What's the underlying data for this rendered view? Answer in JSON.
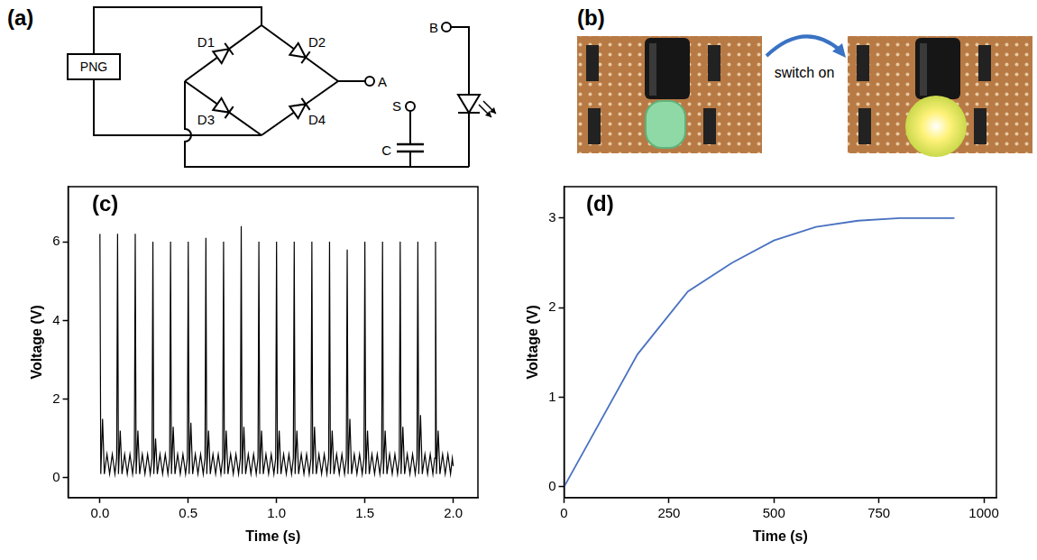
{
  "panel_a": {
    "label": "(a)",
    "circuit": {
      "source": "PNG",
      "diodes": [
        "D1",
        "D2",
        "D3",
        "D4"
      ],
      "terminal_a": "A",
      "terminal_b": "B",
      "switch": "S",
      "capacitor": "C"
    }
  },
  "panel_b": {
    "label": "(b)",
    "annotation": "switch on"
  },
  "chart_data": [
    {
      "panel": "(c)",
      "type": "line",
      "x_label": "Time (s)",
      "y_label": "Voltage (V)",
      "color": "#000000",
      "marker": "none",
      "grid": false,
      "xlim": [
        -0.18,
        2.14
      ],
      "xticks": [
        {
          "value": 0,
          "label": "0.0"
        },
        {
          "value": 0.5,
          "label": "0.5"
        },
        {
          "value": 1,
          "label": "1.0"
        },
        {
          "value": 1.5,
          "label": "1.5"
        },
        {
          "value": 2,
          "label": "2.0"
        }
      ],
      "ylim": [
        -0.5,
        7.4
      ],
      "yticks": [
        0,
        2,
        4,
        6
      ],
      "x": [
        0,
        0.005,
        0.015,
        0.025,
        0.04,
        0.055,
        0.07,
        0.085,
        0.095,
        0.1,
        0.105,
        0.115,
        0.125,
        0.14,
        0.155,
        0.17,
        0.185,
        0.195,
        0.2,
        0.205,
        0.215,
        0.225,
        0.24,
        0.255,
        0.27,
        0.285,
        0.295,
        0.3,
        0.305,
        0.315,
        0.325,
        0.34,
        0.355,
        0.37,
        0.385,
        0.395,
        0.4,
        0.405,
        0.415,
        0.425,
        0.44,
        0.455,
        0.47,
        0.485,
        0.495,
        0.5,
        0.505,
        0.515,
        0.525,
        0.54,
        0.555,
        0.57,
        0.585,
        0.595,
        0.6,
        0.605,
        0.615,
        0.625,
        0.64,
        0.655,
        0.67,
        0.685,
        0.695,
        0.7,
        0.705,
        0.715,
        0.725,
        0.74,
        0.755,
        0.77,
        0.785,
        0.795,
        0.8,
        0.805,
        0.815,
        0.825,
        0.84,
        0.855,
        0.87,
        0.885,
        0.895,
        0.9,
        0.905,
        0.915,
        0.925,
        0.94,
        0.955,
        0.97,
        0.985,
        0.995,
        1.0,
        1.005,
        1.015,
        1.025,
        1.04,
        1.055,
        1.07,
        1.085,
        1.095,
        1.1,
        1.105,
        1.115,
        1.125,
        1.14,
        1.155,
        1.17,
        1.185,
        1.195,
        1.2,
        1.205,
        1.215,
        1.225,
        1.24,
        1.255,
        1.27,
        1.285,
        1.295,
        1.3,
        1.305,
        1.315,
        1.325,
        1.34,
        1.355,
        1.37,
        1.385,
        1.395,
        1.4,
        1.405,
        1.415,
        1.425,
        1.44,
        1.455,
        1.47,
        1.485,
        1.495,
        1.5,
        1.505,
        1.515,
        1.525,
        1.54,
        1.555,
        1.57,
        1.585,
        1.595,
        1.6,
        1.605,
        1.615,
        1.625,
        1.64,
        1.655,
        1.67,
        1.685,
        1.695,
        1.7,
        1.705,
        1.715,
        1.725,
        1.74,
        1.755,
        1.77,
        1.785,
        1.795,
        1.8,
        1.805,
        1.815,
        1.825,
        1.84,
        1.855,
        1.87,
        1.885,
        1.895,
        1.9,
        1.905,
        1.915,
        1.925,
        1.94,
        1.955,
        1.97,
        1.985,
        1.995,
        2.0
      ],
      "values": [
        6.2,
        0.1,
        1.5,
        0.1,
        0.6,
        0.1,
        0.6,
        0.1,
        0.5,
        6.2,
        0.1,
        1.2,
        0.1,
        0.6,
        0.1,
        0.6,
        0.1,
        0.5,
        6.2,
        0.1,
        1.2,
        0.1,
        0.6,
        0.1,
        0.6,
        0.1,
        0.5,
        6.0,
        0.1,
        1.0,
        0.1,
        0.6,
        0.1,
        0.6,
        0.1,
        0.5,
        6.0,
        0.1,
        1.3,
        0.1,
        0.6,
        0.1,
        0.6,
        0.1,
        0.5,
        6.0,
        0.1,
        1.4,
        0.1,
        0.6,
        0.1,
        0.6,
        0.1,
        0.5,
        6.1,
        0.1,
        1.2,
        0.1,
        0.6,
        0.1,
        0.6,
        0.1,
        0.5,
        6.0,
        0.1,
        1.2,
        0.1,
        0.6,
        0.1,
        0.6,
        0.1,
        0.5,
        6.4,
        0.1,
        1.3,
        0.1,
        0.6,
        0.1,
        0.6,
        0.1,
        0.5,
        6.0,
        0.1,
        1.2,
        0.1,
        0.6,
        0.1,
        0.6,
        0.1,
        0.5,
        6.0,
        0.1,
        1.2,
        0.1,
        0.6,
        0.1,
        0.6,
        0.1,
        0.5,
        6.0,
        0.1,
        1.2,
        0.1,
        0.6,
        0.1,
        0.6,
        0.1,
        0.5,
        6.0,
        0.1,
        1.3,
        0.1,
        0.6,
        0.1,
        0.6,
        0.1,
        0.5,
        6.0,
        0.1,
        1.2,
        0.1,
        0.6,
        0.1,
        0.6,
        0.1,
        0.5,
        5.8,
        0.1,
        1.5,
        0.1,
        0.6,
        0.1,
        0.6,
        0.1,
        0.5,
        6.0,
        0.1,
        1.2,
        0.1,
        0.6,
        0.1,
        0.6,
        0.1,
        0.5,
        6.0,
        0.1,
        1.2,
        0.1,
        0.6,
        0.1,
        0.6,
        0.1,
        0.5,
        6.0,
        0.1,
        1.3,
        0.1,
        0.6,
        0.1,
        0.6,
        0.1,
        0.5,
        6.0,
        0.1,
        1.6,
        0.1,
        0.6,
        0.1,
        0.6,
        0.1,
        0.5,
        6.0,
        0.1,
        1.2,
        0.1,
        0.6,
        0.1,
        0.6,
        0.1,
        0.5,
        0.3
      ]
    },
    {
      "panel": "(d)",
      "type": "line",
      "x_label": "Time (s)",
      "y_label": "Voltage (V)",
      "color": "#4a72c0",
      "marker": "none",
      "grid": false,
      "xlim": [
        0,
        1030
      ],
      "xticks": [
        0,
        250,
        500,
        750,
        1000
      ],
      "ylim": [
        -0.12,
        3.35
      ],
      "yticks": [
        0,
        1,
        2,
        3
      ],
      "x": [
        0,
        175,
        295,
        400,
        500,
        600,
        700,
        800,
        930
      ],
      "values": [
        0,
        1.48,
        2.18,
        2.5,
        2.75,
        2.9,
        2.97,
        3.0,
        3.0
      ]
    }
  ]
}
